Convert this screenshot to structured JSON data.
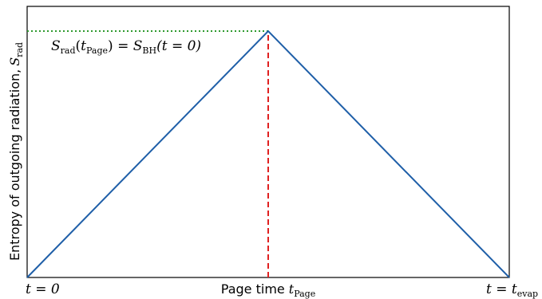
{
  "chart_data": {
    "type": "line",
    "title": "",
    "ylabel_text": "Entropy of outgoing radiation,",
    "ylabel_symbol": "S",
    "ylabel_sub": "rad",
    "x_labels": [
      {
        "kind": "math",
        "text": "t = 0",
        "x": 0
      },
      {
        "kind": "page",
        "prefix": "Page time",
        "symbol": "t",
        "sub": "Page",
        "x": 0.5
      },
      {
        "kind": "math",
        "text": "t = t",
        "sub": "evap",
        "x": 1
      }
    ],
    "annotation": {
      "S": "S",
      "lhs_sub": "rad",
      "t": "t",
      "t_sub": "Page",
      "eq": " = ",
      "rhs_sub": "BH",
      "arg": "(t = 0)"
    },
    "xlim": [
      0,
      1
    ],
    "ylim": [
      0,
      1
    ],
    "series": [
      {
        "x": [
          0,
          0.5,
          1
        ],
        "y": [
          0,
          1,
          0
        ],
        "color": "#1f5fa8"
      }
    ],
    "reference_lines": [
      {
        "orientation": "horizontal",
        "y": 1,
        "x_from": 0,
        "x_to": 0.5,
        "style": "dotted",
        "color": "#2e9a2e"
      },
      {
        "orientation": "vertical",
        "x": 0.5,
        "y_from": 0,
        "y_to": 1,
        "style": "dashed",
        "color": "#e02020"
      }
    ]
  }
}
